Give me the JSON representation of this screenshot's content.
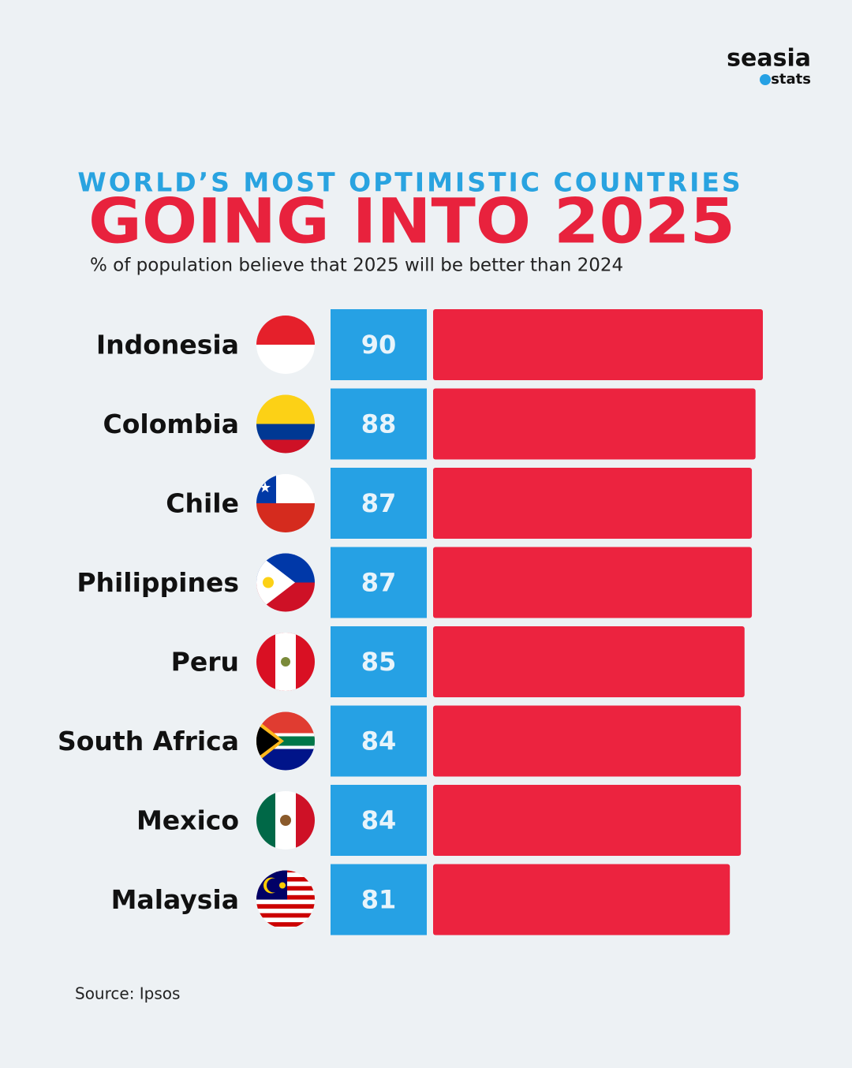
{
  "logo": {
    "name": "seasia",
    "tag": "stats"
  },
  "chart_data": {
    "type": "bar",
    "orientation": "horizontal",
    "title": "WORLD’S MOST OPTIMISTIC COUNTRIES",
    "subtitle": "GOING INTO 2025",
    "description": "% of population believe that 2025 will be better than 2024",
    "categories": [
      "Indonesia",
      "Colombia",
      "Chile",
      "Philippines",
      "Peru",
      "South Africa",
      "Mexico",
      "Malaysia"
    ],
    "values": [
      90,
      88,
      87,
      87,
      85,
      84,
      84,
      81
    ],
    "color": "#ec233f",
    "label_box_color": "#26a1e4"
  },
  "source": "Source: Ipsos"
}
